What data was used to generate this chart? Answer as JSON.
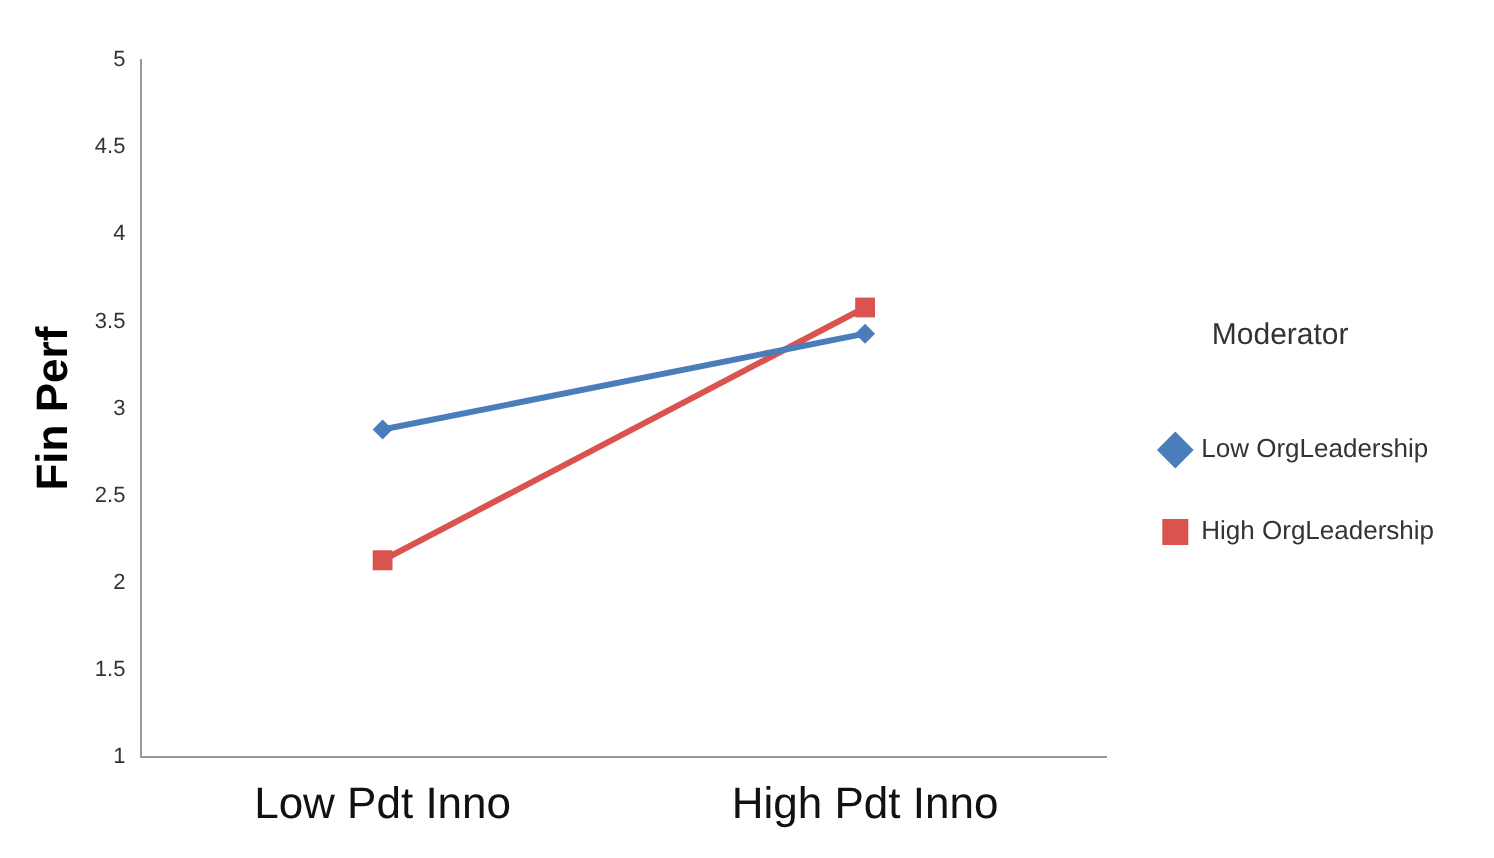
{
  "chart_data": {
    "type": "line",
    "ylabel": "Fin Perf",
    "legend_title": "Moderator",
    "categories": [
      "Low Pdt Inno",
      "High Pdt Inno"
    ],
    "series": [
      {
        "name": "Low OrgLeadership",
        "color": "#4a7ebb",
        "values": [
          2.88,
          3.43
        ],
        "marker": "diamond"
      },
      {
        "name": "High OrgLeadership",
        "color": "#d9534f",
        "values": [
          2.13,
          3.58
        ],
        "marker": "square"
      }
    ],
    "ylim": [
      1,
      5
    ],
    "yticks": [
      1,
      1.5,
      2,
      2.5,
      3,
      3.5,
      4,
      4.5,
      5
    ],
    "grid": false,
    "legend": "right",
    "line_style": "solid"
  }
}
